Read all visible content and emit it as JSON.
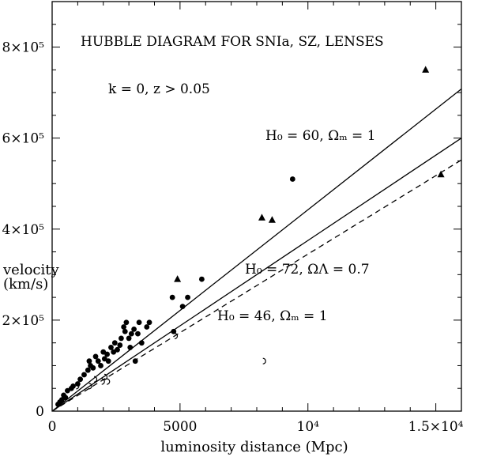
{
  "chart_data": {
    "type": "scatter",
    "title": "HUBBLE DIAGRAM FOR SNIa, SZ, LENSES",
    "subtitle": "k = 0, z > 0.05",
    "xlabel": "luminosity distance (Mpc)",
    "ylabel_line1": "velocity",
    "ylabel_line2": "(km/s)",
    "xlim": [
      0,
      16000
    ],
    "ylim": [
      0,
      900000
    ],
    "x_ticks": [
      {
        "value": 0,
        "label": "0"
      },
      {
        "value": 5000,
        "label": "5000"
      },
      {
        "value": 10000,
        "label": "10⁴"
      },
      {
        "value": 15000,
        "label": "1.5×10⁴"
      }
    ],
    "y_ticks": [
      {
        "value": 0,
        "label": "0"
      },
      {
        "value": 200000,
        "label": "2×10⁵"
      },
      {
        "value": 400000,
        "label": "4×10⁵"
      },
      {
        "value": 600000,
        "label": "6×10⁵"
      },
      {
        "value": 800000,
        "label": "8×10⁵"
      }
    ],
    "lines": [
      {
        "label": "H₀ = 60, Ωₘ = 1",
        "style": "solid",
        "points": [
          [
            0,
            0
          ],
          [
            16000,
            708000
          ]
        ]
      },
      {
        "label": "H₀ = 72, ΩΛ = 0.7",
        "style": "solid",
        "points": [
          [
            0,
            0
          ],
          [
            16000,
            600000
          ]
        ]
      },
      {
        "label": "H₀ = 46, Ωₘ = 1",
        "style": "dashed",
        "points": [
          [
            0,
            0
          ],
          [
            16000,
            552000
          ]
        ]
      }
    ],
    "series": [
      {
        "marker": "filled-circle",
        "points": [
          [
            230,
            15000
          ],
          [
            300,
            20000
          ],
          [
            380,
            25000
          ],
          [
            450,
            35000
          ],
          [
            520,
            30000
          ],
          [
            600,
            45000
          ],
          [
            750,
            50000
          ],
          [
            820,
            55000
          ],
          [
            1000,
            60000
          ],
          [
            1100,
            70000
          ],
          [
            1250,
            80000
          ],
          [
            1400,
            90000
          ],
          [
            1450,
            110000
          ],
          [
            1500,
            100000
          ],
          [
            1600,
            95000
          ],
          [
            1700,
            120000
          ],
          [
            1800,
            110000
          ],
          [
            1900,
            100000
          ],
          [
            2000,
            130000
          ],
          [
            2050,
            115000
          ],
          [
            2150,
            125000
          ],
          [
            2200,
            110000
          ],
          [
            2300,
            140000
          ],
          [
            2400,
            130000
          ],
          [
            2450,
            150000
          ],
          [
            2550,
            135000
          ],
          [
            2650,
            145000
          ],
          [
            2700,
            160000
          ],
          [
            2800,
            185000
          ],
          [
            2850,
            175000
          ],
          [
            2900,
            195000
          ],
          [
            3000,
            160000
          ],
          [
            3050,
            140000
          ],
          [
            3100,
            170000
          ],
          [
            3200,
            180000
          ],
          [
            3250,
            110000
          ],
          [
            3350,
            170000
          ],
          [
            3400,
            195000
          ],
          [
            3500,
            150000
          ],
          [
            3700,
            185000
          ],
          [
            3800,
            195000
          ],
          [
            4700,
            250000
          ],
          [
            4750,
            175000
          ],
          [
            5100,
            230000
          ],
          [
            5300,
            250000
          ],
          [
            5850,
            290000
          ],
          [
            9400,
            510000
          ]
        ]
      },
      {
        "marker": "filled-triangle",
        "points": [
          [
            4900,
            290000
          ],
          [
            8200,
            425000
          ],
          [
            8600,
            420000
          ],
          [
            14600,
            750000
          ],
          [
            15200,
            520000
          ]
        ]
      },
      {
        "marker": "open-arc",
        "points": [
          [
            1000,
            55000
          ],
          [
            1500,
            55000
          ],
          [
            1700,
            70000
          ],
          [
            2000,
            65000
          ],
          [
            2100,
            75000
          ],
          [
            2200,
            65000
          ],
          [
            4850,
            165000
          ],
          [
            8300,
            110000
          ]
        ]
      }
    ]
  }
}
